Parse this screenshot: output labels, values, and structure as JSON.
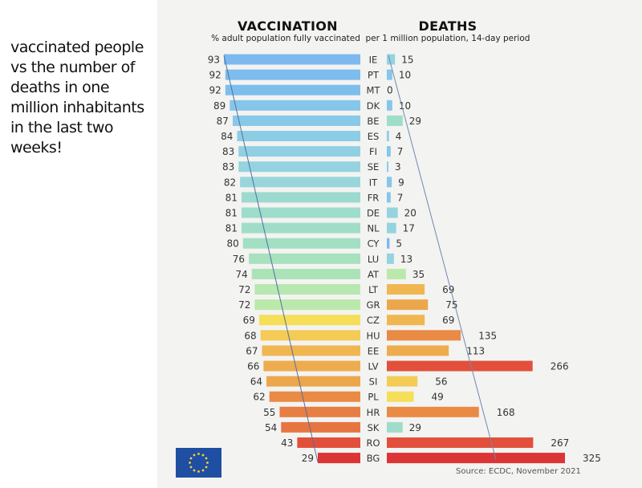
{
  "caption": "vaccinated people vs the number of deaths in one million inhabitants in the last two weeks!",
  "source": "Source: ECDC, November 2021",
  "logo": "eu-flag-icon",
  "chart_data": [
    {
      "type": "bar",
      "orientation": "horizontal",
      "direction": "right-to-left",
      "title": "VACCINATION",
      "subtitle": "% adult population fully vaccinated",
      "categories": [
        "IE",
        "PT",
        "MT",
        "DK",
        "BE",
        "ES",
        "FI",
        "SE",
        "IT",
        "FR",
        "DE",
        "NL",
        "CY",
        "LU",
        "AT",
        "LT",
        "GR",
        "CZ",
        "HU",
        "EE",
        "LV",
        "SI",
        "PL",
        "HR",
        "SK",
        "RO",
        "BG"
      ],
      "values": [
        93,
        92,
        92,
        89,
        87,
        84,
        83,
        83,
        82,
        81,
        81,
        81,
        80,
        76,
        74,
        72,
        72,
        69,
        68,
        67,
        66,
        64,
        62,
        55,
        54,
        43,
        29
      ],
      "colors": [
        "#7db9ef",
        "#7dbcee",
        "#7dbeed",
        "#85c6ea",
        "#88c8e8",
        "#8ccde6",
        "#90d0e2",
        "#94d3df",
        "#98d6dc",
        "#9cdacf",
        "#9edccb",
        "#a0ddc8",
        "#a3dfc3",
        "#a8e1be",
        "#abe3b9",
        "#b6e8b0",
        "#bbe9ab",
        "#f5de58",
        "#f3cb55",
        "#f0b650",
        "#eeac4e",
        "#eca64c",
        "#e98a45",
        "#e77e44",
        "#e67542",
        "#e2503c",
        "#dc3535"
      ],
      "xlim": [
        0,
        100
      ],
      "trend_line": {
        "from": "IE",
        "to": "BG"
      }
    },
    {
      "type": "bar",
      "orientation": "horizontal",
      "title": "DEATHS",
      "subtitle": "per 1 million population, 14-day period",
      "categories": [
        "IE",
        "PT",
        "MT",
        "DK",
        "BE",
        "ES",
        "FI",
        "SE",
        "IT",
        "FR",
        "DE",
        "NL",
        "CY",
        "LU",
        "AT",
        "LT",
        "GR",
        "CZ",
        "HU",
        "EE",
        "LV",
        "SI",
        "PL",
        "HR",
        "SK",
        "RO",
        "BG"
      ],
      "values": [
        15,
        10,
        0,
        10,
        29,
        4,
        7,
        3,
        9,
        7,
        20,
        17,
        5,
        13,
        35,
        69,
        75,
        69,
        135,
        113,
        266,
        56,
        49,
        168,
        29,
        267,
        325
      ],
      "colors": [
        "#94d3df",
        "#85c6ea",
        "#85c6ea",
        "#85c6ea",
        "#a0ddc8",
        "#8ccde6",
        "#85c6ea",
        "#8ccde6",
        "#85c6ea",
        "#85c6ea",
        "#94d3df",
        "#94d3df",
        "#7db9ef",
        "#94d3df",
        "#bbe9ab",
        "#f0b650",
        "#eca64c",
        "#f0b650",
        "#e98a45",
        "#eeac4e",
        "#e2503c",
        "#f3cb55",
        "#f5de58",
        "#e98a45",
        "#a0ddc8",
        "#e2503c",
        "#dc3535"
      ],
      "xlim": [
        0,
        325
      ],
      "trend_line": {
        "from": "IE",
        "to": "BG"
      }
    }
  ]
}
